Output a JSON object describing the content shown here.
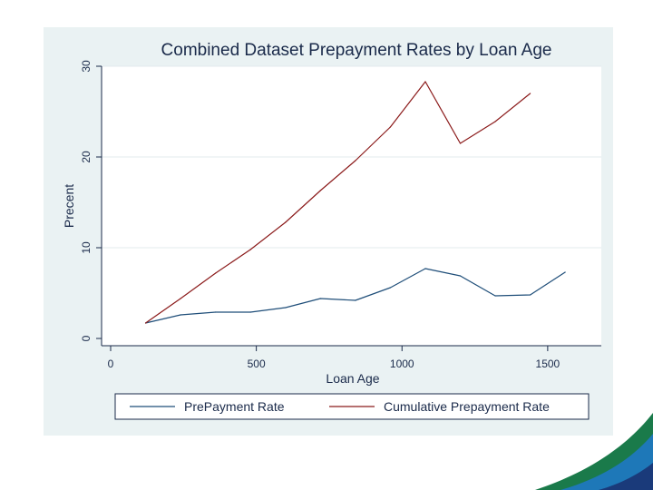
{
  "chart_data": {
    "type": "line",
    "title": "Combined Dataset Prepayment Rates by Loan Age",
    "xlabel": "Loan Age",
    "ylabel": "Precent",
    "xlim": [
      0,
      1600
    ],
    "ylim": [
      0,
      30
    ],
    "xticks": [
      0,
      500,
      1000,
      1500
    ],
    "yticks": [
      0,
      10,
      20,
      30
    ],
    "grid": "horizontal",
    "legend_position": "bottom",
    "series": [
      {
        "name": "PrePayment Rate",
        "color": "#1f4e79",
        "x": [
          120,
          240,
          360,
          480,
          600,
          720,
          840,
          960,
          1080,
          1200,
          1320,
          1440,
          1560
        ],
        "y": [
          1.7,
          2.6,
          2.9,
          2.9,
          3.4,
          4.4,
          4.2,
          5.6,
          7.7,
          6.9,
          4.7,
          4.8,
          7.3
        ]
      },
      {
        "name": "Cumulative Prepayment Rate",
        "color": "#8b1a1a",
        "x": [
          120,
          240,
          360,
          480,
          600,
          720,
          840,
          960,
          1080,
          1200,
          1320,
          1440
        ],
        "y": [
          1.7,
          4.4,
          7.2,
          9.8,
          12.8,
          16.3,
          19.6,
          23.3,
          28.3,
          21.5,
          23.9,
          27.0
        ]
      }
    ]
  }
}
